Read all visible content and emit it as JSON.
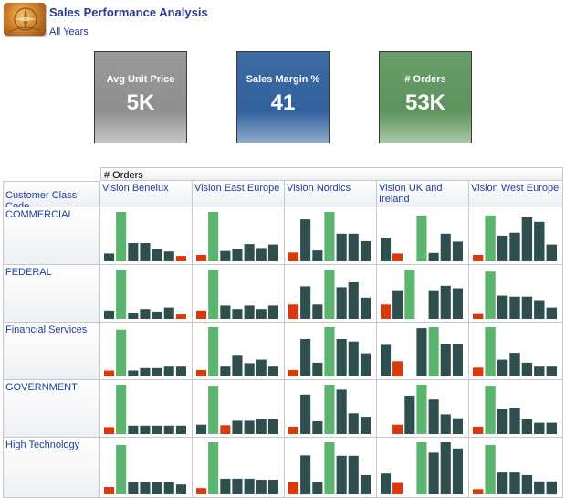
{
  "header": {
    "title": "Sales Performance Analysis",
    "subtitle": "All Years"
  },
  "kpi_tiles": [
    {
      "label": "Avg Unit Price",
      "value": "5K",
      "color": "#8e8e8e"
    },
    {
      "label": "Sales Margin %",
      "value": "41",
      "color": "#31619d"
    },
    {
      "label": "# Orders",
      "value": "53K",
      "color": "#5d935c"
    }
  ],
  "table": {
    "measure_label": "# Orders",
    "row_header_label": "Customer Class Code",
    "columns": [
      "Vision Benelux",
      "Vision East Europe",
      "Vision Nordics",
      "Vision UK and Ireland",
      "Vision West Europe"
    ],
    "rows": [
      "COMMERCIAL",
      "FEDERAL",
      "Financial Services",
      "GOVERNMENT",
      "High Technology"
    ]
  },
  "colors": {
    "bar_default": "#2f4f4f",
    "bar_max": "#5bb56f",
    "bar_min": "#d93a0c",
    "link_text": "#1f3d99"
  },
  "chart_data": {
    "type": "bar",
    "title": "# Orders",
    "description_of_marks": "Small multiple sparkline bar charts, 7 bars each; highest bar green, lowest bar red",
    "bars_per_cell": 7,
    "cells": {
      "COMMERCIAL": {
        "Vision Benelux": [
          16,
          100,
          37,
          37,
          24,
          20,
          11
        ],
        "Vision East Europe": [
          13,
          100,
          21,
          26,
          35,
          27,
          34
        ],
        "Vision Nordics": [
          18,
          85,
          22,
          100,
          56,
          56,
          41
        ],
        "Vision UK and Ireland": [
          48,
          16,
          0,
          93,
          17,
          56,
          40
        ],
        "Vision West Europe": [
          13,
          93,
          52,
          58,
          89,
          80,
          34
        ]
      },
      "FEDERAL": {
        "Vision Benelux": [
          17,
          100,
          13,
          20,
          15,
          23,
          9
        ],
        "Vision East Europe": [
          17,
          100,
          27,
          20,
          27,
          20,
          27
        ],
        "Vision Nordics": [
          29,
          66,
          29,
          100,
          64,
          74,
          43
        ],
        "Vision UK and Ireland": [
          29,
          58,
          100,
          0,
          58,
          67,
          62
        ],
        "Vision West Europe": [
          10,
          96,
          47,
          45,
          45,
          38,
          23
        ]
      },
      "Financial Services": {
        "Vision Benelux": [
          12,
          95,
          12,
          17,
          17,
          20,
          20
        ],
        "Vision East Europe": [
          13,
          100,
          20,
          42,
          27,
          34,
          20
        ],
        "Vision Nordics": [
          13,
          76,
          28,
          100,
          76,
          71,
          47
        ],
        "Vision UK and Ireland": [
          64,
          31,
          0,
          98,
          100,
          66,
          66
        ],
        "Vision West Europe": [
          18,
          100,
          34,
          48,
          28,
          20,
          20
        ]
      },
      "GOVERNMENT": {
        "Vision Benelux": [
          14,
          100,
          17,
          17,
          17,
          17,
          17
        ],
        "Vision East Europe": [
          19,
          98,
          18,
          27,
          27,
          30,
          30
        ],
        "Vision Nordics": [
          15,
          80,
          26,
          100,
          90,
          42,
          35
        ],
        "Vision UK and Ireland": [
          0,
          19,
          78,
          100,
          70,
          40,
          32
        ],
        "Vision West Europe": [
          15,
          98,
          50,
          53,
          30,
          23,
          23
        ]
      },
      "High Technology": {
        "Vision Benelux": [
          14,
          95,
          23,
          23,
          23,
          23,
          19
        ],
        "Vision East Europe": [
          12,
          100,
          30,
          30,
          30,
          28,
          28
        ],
        "Vision Nordics": [
          23,
          75,
          23,
          100,
          74,
          74,
          37
        ],
        "Vision UK and Ireland": [
          40,
          22,
          0,
          100,
          80,
          100,
          88
        ],
        "Vision West Europe": [
          10,
          95,
          42,
          42,
          37,
          25,
          25
        ]
      }
    }
  }
}
